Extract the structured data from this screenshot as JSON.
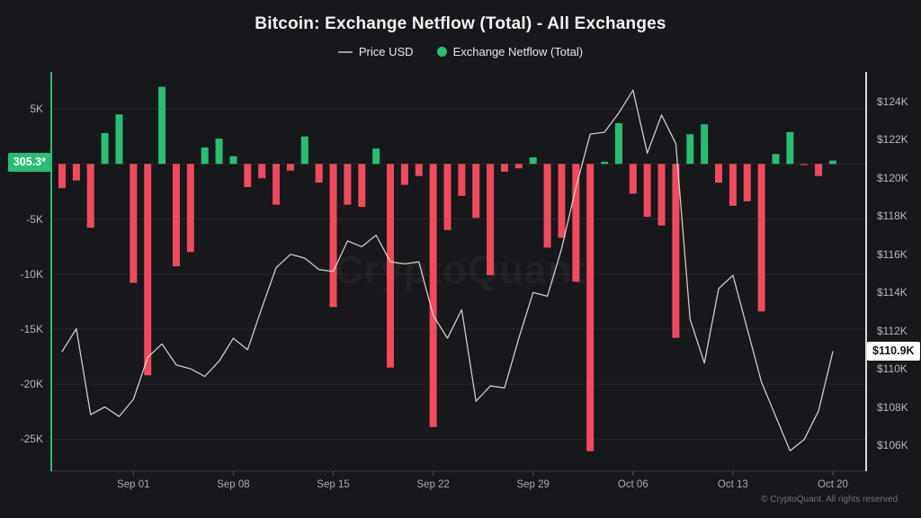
{
  "title": "Bitcoin: Exchange Netflow (Total) - All Exchanges",
  "legend": {
    "items": [
      {
        "label": "Price USD",
        "marker": "line",
        "color": "#9aa0a6"
      },
      {
        "label": "Exchange Netflow (Total)",
        "marker": "dot",
        "color": "#2abd74"
      }
    ]
  },
  "watermark": {
    "text": "CryptoQuant"
  },
  "copyright": "© CryptoQuant. All rights reserved",
  "badges": {
    "netflow_last": "305.3*",
    "price_last": "$110.9K"
  },
  "colors": {
    "background": "#17181b",
    "bar_positive": "#2abd74",
    "bar_negative": "#ef4a5e",
    "price_line": "#e4e4e4",
    "grid": "rgba(255,255,255,0.07)",
    "left_axis_line": "#2abd74",
    "right_axis_line": "#d9d9d9"
  },
  "chart_data": {
    "type": "bar",
    "title": "Bitcoin: Exchange Netflow (Total) - All Exchanges",
    "xlabel": "",
    "ylabel_left": "Exchange Netflow (Total), BTC",
    "ylabel_right": "Price USD",
    "grid": true,
    "legend_position": "top-center",
    "categories": [
      "Aug 27",
      "Aug 28",
      "Aug 29",
      "Aug 30",
      "Aug 31",
      "Sep 01",
      "Sep 02",
      "Sep 03",
      "Sep 04",
      "Sep 05",
      "Sep 06",
      "Sep 07",
      "Sep 08",
      "Sep 09",
      "Sep 10",
      "Sep 11",
      "Sep 12",
      "Sep 13",
      "Sep 14",
      "Sep 15",
      "Sep 16",
      "Sep 17",
      "Sep 18",
      "Sep 19",
      "Sep 20",
      "Sep 21",
      "Sep 22",
      "Sep 23",
      "Sep 24",
      "Sep 25",
      "Sep 26",
      "Sep 27",
      "Sep 28",
      "Sep 29",
      "Sep 30",
      "Oct 01",
      "Oct 02",
      "Oct 03",
      "Oct 04",
      "Oct 05",
      "Oct 06",
      "Oct 07",
      "Oct 08",
      "Oct 09",
      "Oct 10",
      "Oct 11",
      "Oct 12",
      "Oct 13",
      "Oct 14",
      "Oct 15",
      "Oct 16",
      "Oct 17",
      "Oct 18",
      "Oct 19",
      "Oct 20"
    ],
    "series": [
      {
        "name": "Exchange Netflow (Total)",
        "type": "bar",
        "unit": "BTC",
        "values": [
          -2200,
          -1500,
          -5800,
          2800,
          4500,
          -10800,
          -19200,
          7000,
          -9300,
          -8000,
          1500,
          2300,
          700,
          -2100,
          -1300,
          -3700,
          -600,
          2500,
          -1700,
          -13000,
          -3700,
          -3900,
          1400,
          -18500,
          -1900,
          -1100,
          -23900,
          -6000,
          -2900,
          -4900,
          -10100,
          -700,
          -400,
          600,
          -7600,
          -6700,
          -10700,
          -26100,
          200,
          3700,
          -2700,
          -4800,
          -5600,
          -15800,
          2700,
          3600,
          -1700,
          -3800,
          -3400,
          -13400,
          900,
          2900,
          -100,
          -1100,
          305.3
        ]
      },
      {
        "name": "Price USD",
        "type": "line",
        "unit": "thousand USD",
        "values": [
          110.9,
          112.1,
          107.6,
          108.0,
          107.5,
          108.4,
          110.6,
          111.3,
          110.2,
          110.0,
          109.6,
          110.4,
          111.6,
          111.0,
          113.2,
          115.3,
          116.0,
          115.8,
          115.2,
          115.1,
          116.7,
          116.4,
          117.0,
          115.6,
          115.5,
          115.6,
          112.8,
          111.6,
          113.1,
          108.3,
          109.1,
          109.0,
          111.6,
          114.0,
          113.8,
          116.3,
          119.5,
          122.3,
          122.4,
          123.4,
          124.6,
          121.3,
          123.3,
          121.8,
          112.6,
          110.3,
          114.2,
          114.9,
          112.1,
          109.3,
          107.5,
          105.7,
          106.3,
          107.8,
          110.9
        ]
      }
    ],
    "left_axis": {
      "ticks": [
        "5K",
        "-5K",
        "-10K",
        "-15K",
        "-20K",
        "-25K"
      ],
      "tick_values": [
        5000,
        -5000,
        -10000,
        -15000,
        -20000,
        -25000
      ],
      "range": [
        -27900,
        8350
      ]
    },
    "right_axis": {
      "ticks": [
        "$124K",
        "$122K",
        "$120K",
        "$118K",
        "$116K",
        "$114K",
        "$112K",
        "$110K",
        "$108K",
        "$106K"
      ],
      "tick_values": [
        124,
        122,
        120,
        118,
        116,
        114,
        112,
        110,
        108,
        106
      ],
      "range": [
        104.8,
        125.6
      ]
    },
    "x_axis": {
      "ticks": [
        "Sep 01",
        "Sep 08",
        "Sep 15",
        "Sep 22",
        "Sep 29",
        "Oct 06",
        "Oct 13",
        "Oct 20"
      ],
      "tick_indices": [
        5,
        12,
        19,
        26,
        33,
        40,
        47,
        54
      ]
    },
    "last_values": {
      "netflow": 305.3,
      "price_usd_k": 110.9
    }
  }
}
